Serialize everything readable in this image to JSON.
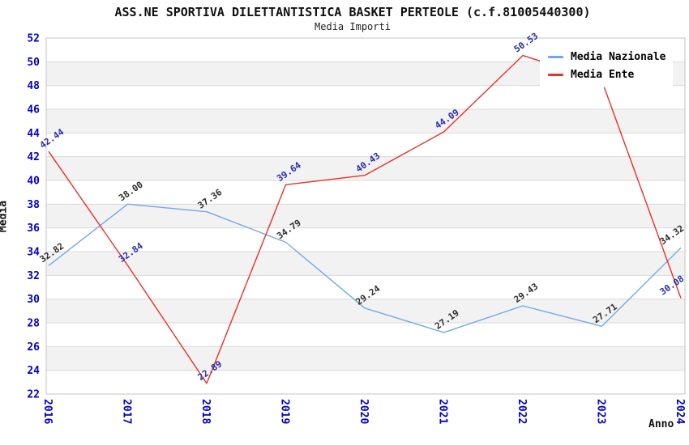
{
  "header": {
    "title": "ASS.NE SPORTIVA DILETTANTISTICA BASKET PERTEOLE (c.f.81005440300)",
    "subtitle": "Media Importi"
  },
  "axes": {
    "y_label": "Media",
    "x_label": "Anno",
    "y_ticks": [
      52,
      50,
      48,
      46,
      44,
      42,
      40,
      38,
      36,
      34,
      32,
      30,
      28,
      26,
      24,
      22
    ],
    "tick_color": "#0000cd"
  },
  "legend": {
    "items": [
      {
        "label": "Media Nazionale",
        "color": "#74aae2"
      },
      {
        "label": "Media Ente",
        "color": "#e9302a"
      }
    ]
  },
  "chart_data": {
    "type": "line",
    "title": "ASS.NE SPORTIVA DILETTANTISTICA BASKET PERTEOLE (c.f.81005440300)",
    "subtitle": "Media Importi",
    "xlabel": "Anno",
    "ylabel": "Media",
    "ylim": [
      22,
      52
    ],
    "y_step": 2,
    "grid": true,
    "legend_position": "top-right-inside",
    "categories": [
      "2016",
      "2017",
      "2018",
      "2019",
      "2020",
      "2021",
      "2022",
      "2023",
      "2024"
    ],
    "series": [
      {
        "name": "Media Nazionale",
        "color": "#74aae2",
        "label_color": "#2e2e2e",
        "values": [
          32.82,
          38.0,
          37.36,
          34.79,
          29.24,
          27.19,
          29.43,
          27.71,
          34.32
        ],
        "labels": [
          "32.82",
          "38.00",
          "37.36",
          "34.79",
          "29.24",
          "27.19",
          "29.43",
          "27.71",
          "34.32"
        ]
      },
      {
        "name": "Media Ente",
        "color": "#e9302a",
        "label_color": "#2c2ca8",
        "values": [
          42.44,
          32.84,
          22.89,
          39.64,
          40.43,
          44.09,
          50.53,
          48.4,
          30.08
        ],
        "labels": [
          "42.44",
          "32.84",
          "22.89",
          "39.64",
          "40.43",
          "44.09",
          "50.53",
          null,
          "30.08"
        ],
        "hidden_label_indices": [
          7
        ],
        "note_2023": "point hidden behind legend, value estimated from line slope"
      }
    ],
    "plot": {
      "stripe_colors": [
        "#ffffff",
        "#f2f2f2"
      ],
      "grid_color": "#dadada",
      "border_color": "#c4c4c4"
    }
  }
}
